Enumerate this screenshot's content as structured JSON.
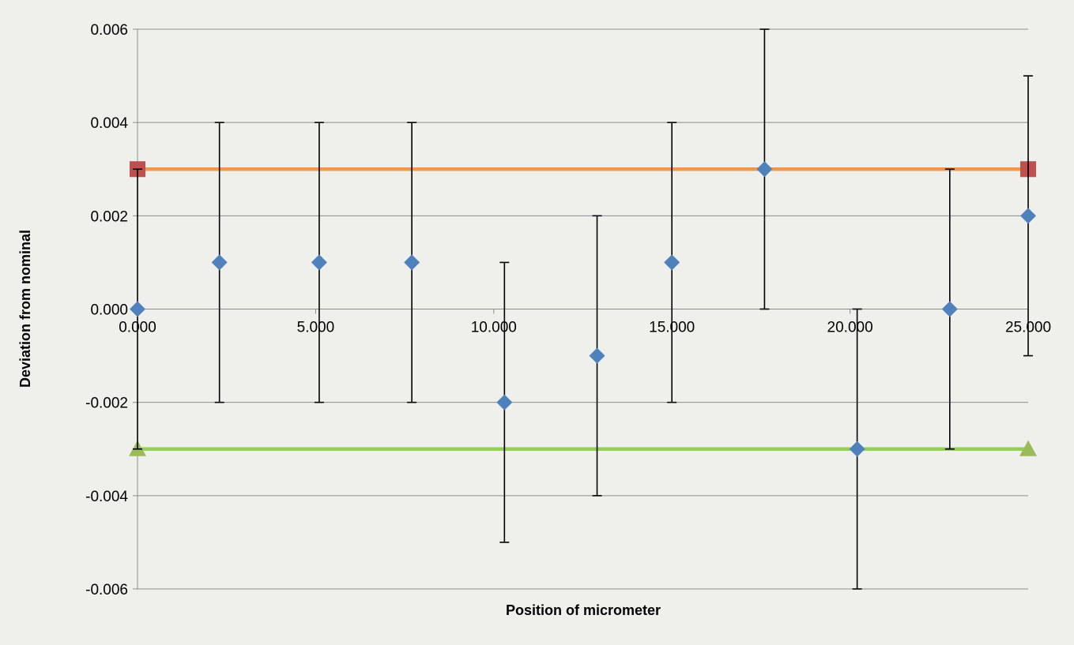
{
  "chart_data": {
    "type": "scatter",
    "xlabel": "Position of micrometer",
    "ylabel": "Deviation from nominal",
    "xlim": [
      0,
      25
    ],
    "ylim": [
      -0.006,
      0.006
    ],
    "grid": "horizontal",
    "legend": "none",
    "x_ticks": [
      {
        "value": 0,
        "label": "0.000"
      },
      {
        "value": 5,
        "label": "5.000"
      },
      {
        "value": 10,
        "label": "10.000"
      },
      {
        "value": 15,
        "label": "15.000"
      },
      {
        "value": 20,
        "label": "20.000"
      },
      {
        "value": 25,
        "label": "25.000"
      }
    ],
    "y_ticks": [
      {
        "value": 0.006,
        "label": "0.006"
      },
      {
        "value": 0.004,
        "label": "0.004"
      },
      {
        "value": 0.002,
        "label": "0.002"
      },
      {
        "value": 0,
        "label": "0.000"
      },
      {
        "value": -0.002,
        "label": "-0.002"
      },
      {
        "value": -0.004,
        "label": "-0.004"
      },
      {
        "value": -0.006,
        "label": "-0.006"
      }
    ],
    "measurements": {
      "color": "#4f81bd",
      "marker": "diamond",
      "error": 0.003,
      "points": [
        {
          "x": 0,
          "y": 0
        },
        {
          "x": 2.3,
          "y": 0.001
        },
        {
          "x": 5.1,
          "y": 0.001
        },
        {
          "x": 7.7,
          "y": 0.001
        },
        {
          "x": 10.3,
          "y": -0.002
        },
        {
          "x": 12.9,
          "y": -0.001
        },
        {
          "x": 15.0,
          "y": 0.001
        },
        {
          "x": 17.6,
          "y": 0.003
        },
        {
          "x": 20.2,
          "y": -0.003
        },
        {
          "x": 22.8,
          "y": 0
        },
        {
          "x": 25.0,
          "y": 0.002
        }
      ]
    },
    "limit_lines": [
      {
        "id": "upper-limit",
        "y": 0.003,
        "x": [
          0,
          25
        ],
        "color": "#f79646",
        "marker": "square",
        "marker_color": "#c0504d"
      },
      {
        "id": "lower-limit",
        "y": -0.003,
        "x": [
          0,
          25
        ],
        "color": "#92d050",
        "marker": "triangle",
        "marker_color": "#9bbb59"
      }
    ]
  }
}
